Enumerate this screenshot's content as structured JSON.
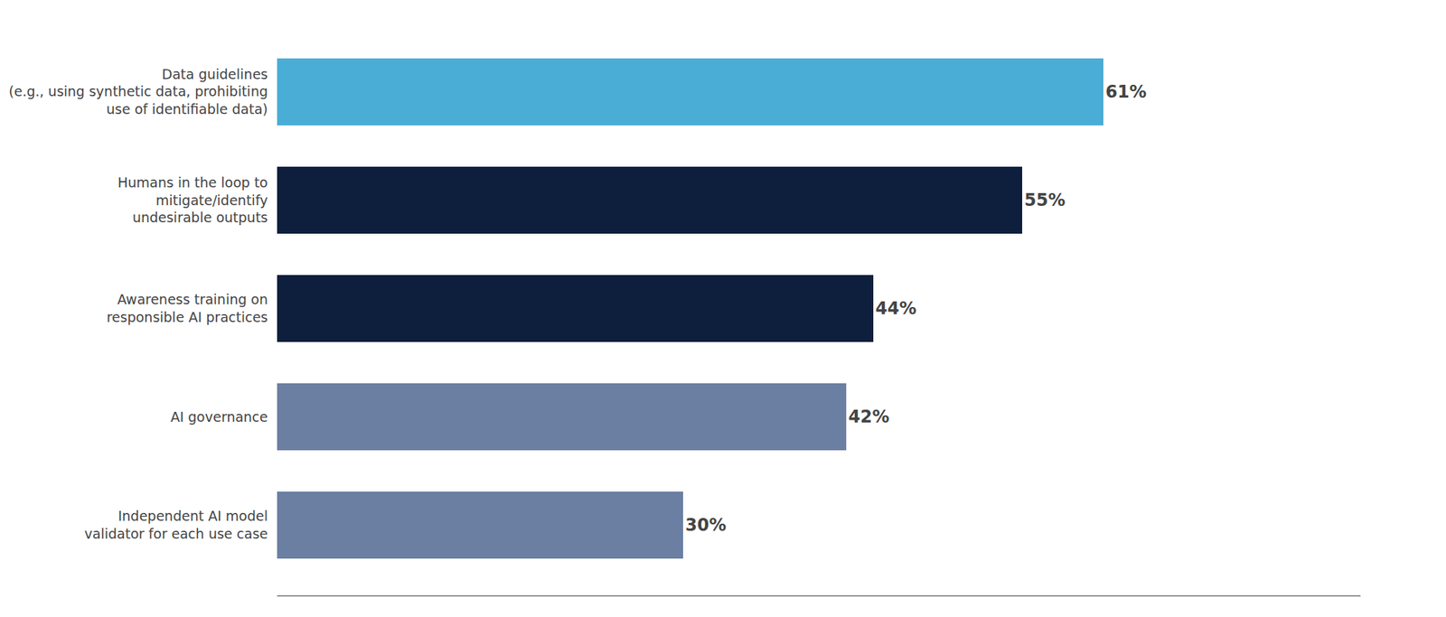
{
  "chart_data": {
    "type": "bar",
    "orientation": "horizontal",
    "categories": [
      "Independent AI model\nvalidator for each use case",
      "AI governance",
      "Awareness training on\nresponsible AI practices",
      "Humans in the loop to\nmitigate/identify\nundesirable outputs",
      "Data guidelines\n(e.g., using synthetic data, prohibiting\nuse of identifiable data)"
    ],
    "values": [
      30,
      42,
      44,
      55,
      61
    ],
    "value_labels": [
      "30%",
      "42%",
      "44%",
      "55%",
      "61%"
    ],
    "colors": [
      "#6b7fa3",
      "#6b7fa3",
      "#0d1f3c",
      "#0d1f3c",
      "#4aadd6"
    ],
    "xlim": [
      0,
      80
    ],
    "grid": false,
    "data_labels": true,
    "tick_labels": "y"
  }
}
